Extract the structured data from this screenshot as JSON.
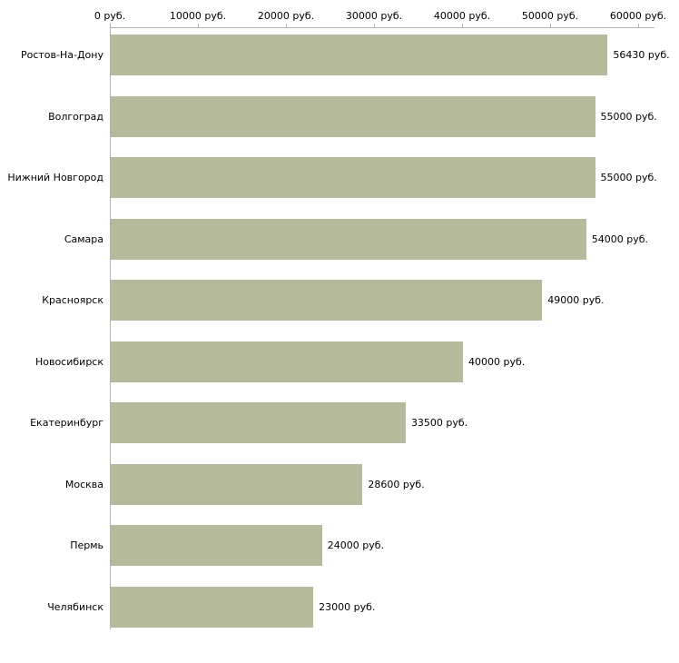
{
  "chart_data": {
    "type": "bar",
    "orientation": "horizontal",
    "categories": [
      "Ростов-На-Дону",
      "Волгоград",
      "Нижний Новгород",
      "Самара",
      "Красноярск",
      "Новосибирск",
      "Екатеринбург",
      "Москва",
      "Пермь",
      "Челябинск"
    ],
    "values": [
      56430,
      55000,
      55000,
      54000,
      49000,
      40000,
      33500,
      28600,
      24000,
      23000
    ],
    "value_labels": [
      "56430 руб.",
      "55000 руб.",
      "55000 руб.",
      "54000 руб.",
      "49000 руб.",
      "40000 руб.",
      "33500 руб.",
      "28600 руб.",
      "24000 руб.",
      "23000 руб."
    ],
    "x_ticks": [
      0,
      10000,
      20000,
      30000,
      40000,
      50000,
      60000
    ],
    "x_tick_labels": [
      "0 руб.",
      "10000 руб.",
      "20000 руб.",
      "30000 руб.",
      "40000 руб.",
      "50000 руб.",
      "60000 руб."
    ],
    "xlim": [
      0,
      62000
    ],
    "unit": "руб.",
    "bar_color": "#b4ba9a",
    "axis_color": "#b3b3b3",
    "text_color": "#000000",
    "grid": false,
    "legend": false
  }
}
